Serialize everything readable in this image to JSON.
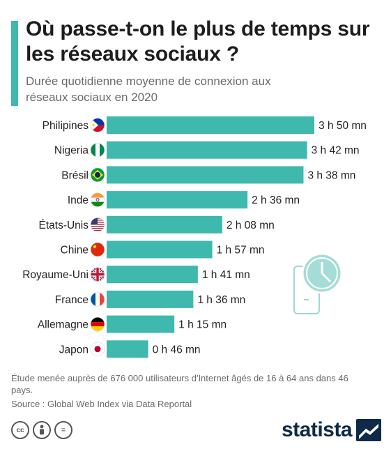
{
  "header": {
    "title": "Où passe-t-on le plus de temps sur les réseaux sociaux ?",
    "subtitle": "Durée quotidienne moyenne de connexion aux réseaux sociaux en 2020"
  },
  "chart_data": {
    "type": "bar",
    "orientation": "horizontal",
    "bar_color": "#3fb8ad",
    "categories": [
      "Philipines",
      "Nigeria",
      "Brésil",
      "Inde",
      "États-Unis",
      "Chine",
      "Royaume-Uni",
      "France",
      "Allemagne",
      "Japon"
    ],
    "values_minutes": [
      230,
      222,
      218,
      156,
      128,
      117,
      101,
      96,
      75,
      46
    ],
    "labels": [
      "3 h 50 mn",
      "3 h 42 mn",
      "3 h 38 mn",
      "2 h 36 mn",
      "2 h 08 mn",
      "1 h 57 mn",
      "1 h 41 mn",
      "1 h 36 mn",
      "1 h 15 mn",
      "0 h 46 mn"
    ],
    "flag_icons": [
      "flag-philippines-icon",
      "flag-nigeria-icon",
      "flag-brazil-icon",
      "flag-india-icon",
      "flag-usa-icon",
      "flag-china-icon",
      "flag-uk-icon",
      "flag-france-icon",
      "flag-germany-icon",
      "flag-japan-icon"
    ],
    "xlim": [
      0,
      230
    ],
    "grid": false,
    "legend": "none"
  },
  "footer": {
    "note": "Étude menée auprès de 676 000 utilisateurs d'Internet âgés de 16 à 64 ans dans 46 pays.",
    "source": "Source : Global Web Index via Data Reportal",
    "brand": "statista",
    "license_icons": [
      "cc-icon",
      "by-icon",
      "nd-icon"
    ]
  },
  "colors": {
    "accent": "#3fb8ad",
    "brand": "#0e2a47",
    "text_muted": "#6a6a6a"
  }
}
